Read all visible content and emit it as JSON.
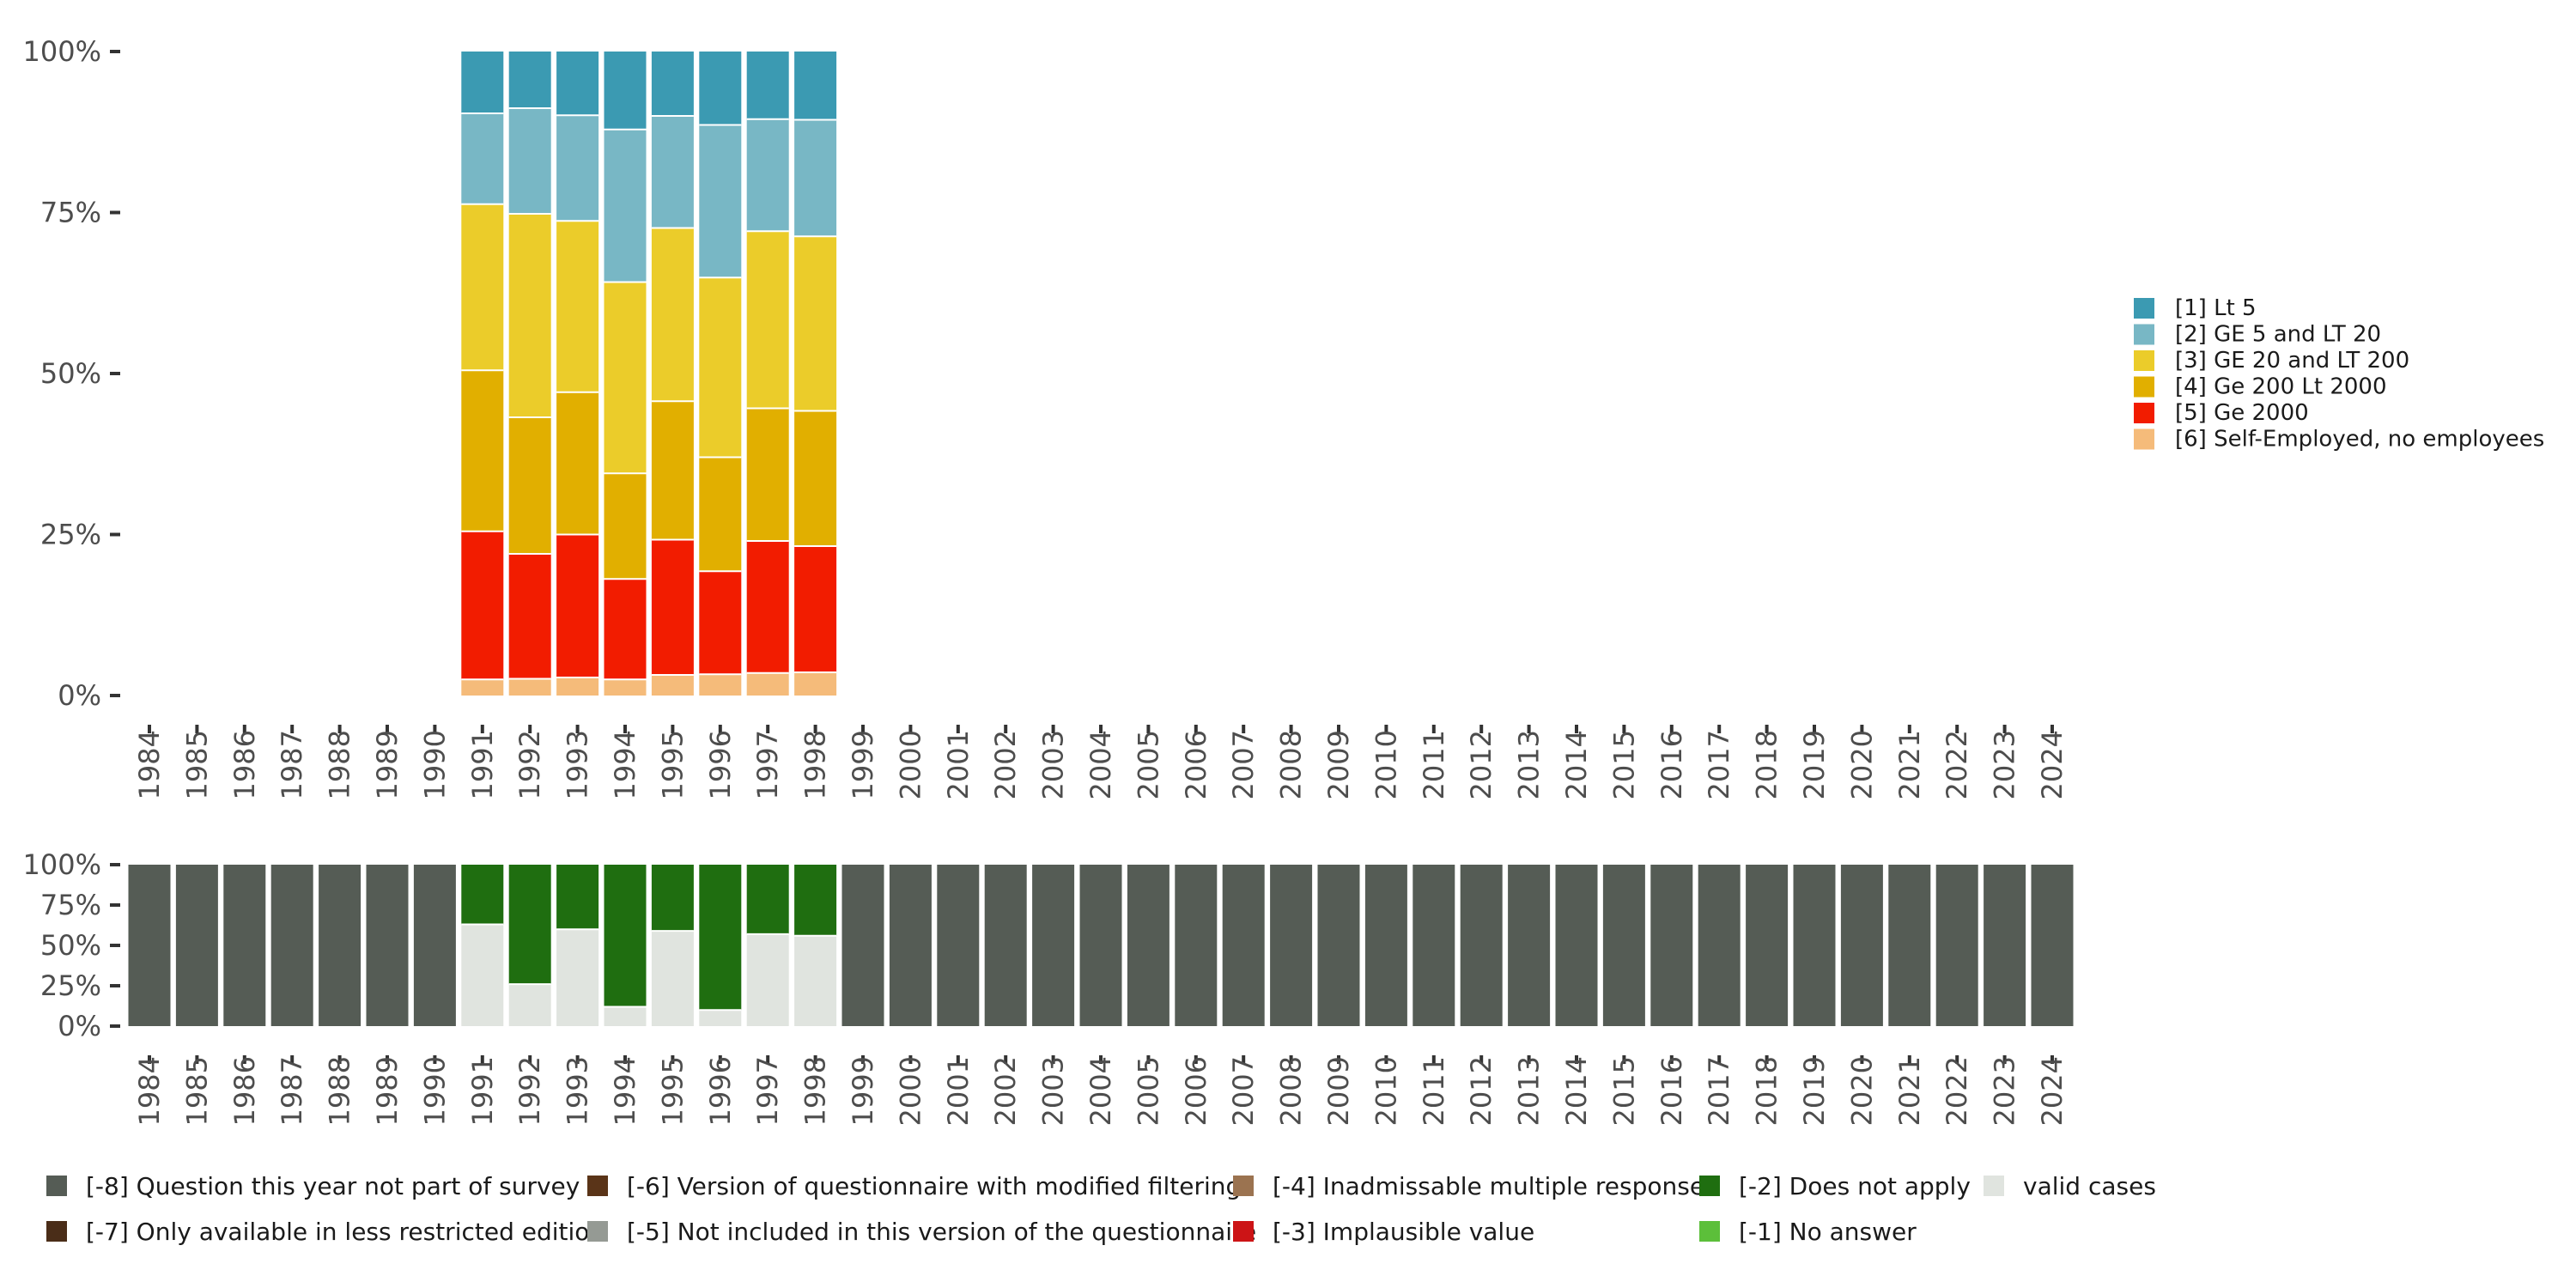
{
  "chart_data": [
    {
      "type": "bar",
      "stacked": true,
      "normalized": true,
      "title": "",
      "xlabel": "",
      "ylabel": "",
      "ylim": [
        0,
        1
      ],
      "y_ticks": [
        {
          "value": 0,
          "label": "0%"
        },
        {
          "value": 0.25,
          "label": "25%"
        },
        {
          "value": 0.5,
          "label": "50%"
        },
        {
          "value": 0.75,
          "label": "75%"
        },
        {
          "value": 1,
          "label": "100%"
        }
      ],
      "categories": [
        "1984",
        "1985",
        "1986",
        "1987",
        "1988",
        "1989",
        "1990",
        "1991",
        "1992",
        "1993",
        "1994",
        "1995",
        "1996",
        "1997",
        "1998",
        "1999",
        "2000",
        "2001",
        "2002",
        "2003",
        "2004",
        "2005",
        "2006",
        "2007",
        "2008",
        "2009",
        "2010",
        "2011",
        "2012",
        "2013",
        "2014",
        "2015",
        "2016",
        "2017",
        "2018",
        "2019",
        "2020",
        "2021",
        "2022",
        "2023",
        "2024"
      ],
      "legend_position": "right",
      "series": [
        {
          "name": "[6] Self-Employed, no employees",
          "color": "#f5bb7a",
          "values": [
            null,
            null,
            null,
            null,
            null,
            null,
            null,
            0.025,
            0.026,
            0.028,
            0.025,
            0.032,
            0.033,
            0.035,
            0.036,
            null,
            null,
            null,
            null,
            null,
            null,
            null,
            null,
            null,
            null,
            null,
            null,
            null,
            null,
            null,
            null,
            null,
            null,
            null,
            null,
            null,
            null,
            null,
            null,
            null,
            null
          ]
        },
        {
          "name": "[5] Ge 2000",
          "color": "#f21c00",
          "values": [
            null,
            null,
            null,
            null,
            null,
            null,
            null,
            0.23,
            0.194,
            0.222,
            0.156,
            0.21,
            0.16,
            0.205,
            0.196,
            null,
            null,
            null,
            null,
            null,
            null,
            null,
            null,
            null,
            null,
            null,
            null,
            null,
            null,
            null,
            null,
            null,
            null,
            null,
            null,
            null,
            null,
            null,
            null,
            null,
            null
          ]
        },
        {
          "name": "[4] Ge 200 Lt 2000",
          "color": "#e1af00",
          "values": [
            null,
            null,
            null,
            null,
            null,
            null,
            null,
            0.25,
            0.212,
            0.221,
            0.164,
            0.215,
            0.177,
            0.206,
            0.21,
            null,
            null,
            null,
            null,
            null,
            null,
            null,
            null,
            null,
            null,
            null,
            null,
            null,
            null,
            null,
            null,
            null,
            null,
            null,
            null,
            null,
            null,
            null,
            null,
            null,
            null
          ]
        },
        {
          "name": "[3] GE 20 and LT 200",
          "color": "#ebcc2a",
          "values": [
            null,
            null,
            null,
            null,
            null,
            null,
            null,
            0.258,
            0.316,
            0.266,
            0.297,
            0.269,
            0.279,
            0.275,
            0.271,
            null,
            null,
            null,
            null,
            null,
            null,
            null,
            null,
            null,
            null,
            null,
            null,
            null,
            null,
            null,
            null,
            null,
            null,
            null,
            null,
            null,
            null,
            null,
            null,
            null,
            null
          ]
        },
        {
          "name": "[2] GE 5 and LT 20",
          "color": "#78b7c5",
          "values": [
            null,
            null,
            null,
            null,
            null,
            null,
            null,
            0.141,
            0.164,
            0.164,
            0.237,
            0.174,
            0.237,
            0.174,
            0.181,
            null,
            null,
            null,
            null,
            null,
            null,
            null,
            null,
            null,
            null,
            null,
            null,
            null,
            null,
            null,
            null,
            null,
            null,
            null,
            null,
            null,
            null,
            null,
            null,
            null,
            null
          ]
        },
        {
          "name": "[1] Lt 5",
          "color": "#3b9ab2",
          "values": [
            null,
            null,
            null,
            null,
            null,
            null,
            null,
            0.096,
            0.088,
            0.099,
            0.121,
            0.1,
            0.114,
            0.105,
            0.106,
            null,
            null,
            null,
            null,
            null,
            null,
            null,
            null,
            null,
            null,
            null,
            null,
            null,
            null,
            null,
            null,
            null,
            null,
            null,
            null,
            null,
            null,
            null,
            null,
            null,
            null
          ]
        }
      ]
    },
    {
      "type": "bar",
      "stacked": true,
      "normalized": true,
      "title": "",
      "xlabel": "",
      "ylabel": "",
      "ylim": [
        0,
        1
      ],
      "y_ticks": [
        {
          "value": 0,
          "label": "0%"
        },
        {
          "value": 0.25,
          "label": "25%"
        },
        {
          "value": 0.5,
          "label": "50%"
        },
        {
          "value": 0.75,
          "label": "75%"
        },
        {
          "value": 1,
          "label": "100%"
        }
      ],
      "categories": [
        "1984",
        "1985",
        "1986",
        "1987",
        "1988",
        "1989",
        "1990",
        "1991",
        "1992",
        "1993",
        "1994",
        "1995",
        "1996",
        "1997",
        "1998",
        "1999",
        "2000",
        "2001",
        "2002",
        "2003",
        "2004",
        "2005",
        "2006",
        "2007",
        "2008",
        "2009",
        "2010",
        "2011",
        "2012",
        "2013",
        "2014",
        "2015",
        "2016",
        "2017",
        "2018",
        "2019",
        "2020",
        "2021",
        "2022",
        "2023",
        "2024"
      ],
      "legend_position": "bottom",
      "series": [
        {
          "name": "valid cases",
          "color": "#e0e4df",
          "values": [
            0,
            0,
            0,
            0,
            0,
            0,
            0,
            0.63,
            0.26,
            0.6,
            0.12,
            0.59,
            0.1,
            0.57,
            0.56,
            0,
            0,
            0,
            0,
            0,
            0,
            0,
            0,
            0,
            0,
            0,
            0,
            0,
            0,
            0,
            0,
            0,
            0,
            0,
            0,
            0,
            0,
            0,
            0,
            0,
            0
          ]
        },
        {
          "name": "[-2] Does not apply",
          "color": "#1f6e10",
          "values": [
            0,
            0,
            0,
            0,
            0,
            0,
            0,
            0.37,
            0.74,
            0.4,
            0.88,
            0.41,
            0.9,
            0.43,
            0.44,
            0,
            0,
            0,
            0,
            0,
            0,
            0,
            0,
            0,
            0,
            0,
            0,
            0,
            0,
            0,
            0,
            0,
            0,
            0,
            0,
            0,
            0,
            0,
            0,
            0,
            0
          ]
        },
        {
          "name": "[-8] Question this year not part of survey",
          "color": "#555c55",
          "values": [
            1,
            1,
            1,
            1,
            1,
            1,
            1,
            0,
            0,
            0,
            0,
            0,
            0,
            0,
            0,
            1,
            1,
            1,
            1,
            1,
            1,
            1,
            1,
            1,
            1,
            1,
            1,
            1,
            1,
            1,
            1,
            1,
            1,
            1,
            1,
            1,
            1,
            1,
            1,
            1,
            1
          ]
        }
      ],
      "legend_entries": [
        {
          "name": "[-8] Question this year not part of survey",
          "color": "#555c55"
        },
        {
          "name": "[-7] Only available in less restricted edition",
          "color": "#4a2d18"
        },
        {
          "name": "[-6] Version of questionnaire with modified filtering",
          "color": "#5a3418"
        },
        {
          "name": "[-5] Not included in this version of the questionnaire",
          "color": "#959a94"
        },
        {
          "name": "[-4] Inadmissable multiple response",
          "color": "#9b7350"
        },
        {
          "name": "[-3] Implausible value",
          "color": "#cc1416"
        },
        {
          "name": "[-2] Does not apply",
          "color": "#1f6e10"
        },
        {
          "name": "[-1] No answer",
          "color": "#5cbf3a"
        },
        {
          "name": "valid cases",
          "color": "#e0e4df"
        }
      ]
    }
  ]
}
